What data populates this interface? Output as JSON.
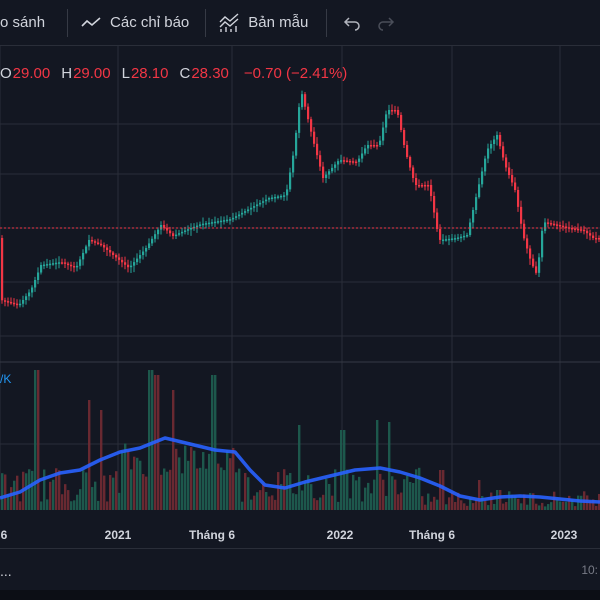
{
  "toolbar": {
    "compare_label": "o sánh",
    "indicators_label": "Các chỉ báo",
    "templates_label": "Bản mẫu"
  },
  "ohlc": {
    "o_label": "O",
    "o_value": "29.00",
    "h_label": "H",
    "h_value": "29.00",
    "l_label": "L",
    "l_value": "28.10",
    "c_label": "C",
    "c_value": "28.30",
    "change": "−0.70 (−2.41%)"
  },
  "volume_label": "/K",
  "x_axis_labels": [
    "6",
    "2021",
    "Tháng 6",
    "2022",
    "Tháng 6",
    "2023"
  ],
  "status": {
    "left": "...",
    "right": "10:"
  },
  "colors": {
    "background": "#131722",
    "up": "#26a69a",
    "down": "#f23645",
    "volume_ma": "#2962ff",
    "grid": "#2a2e39"
  },
  "chart_data": {
    "type": "candlestick",
    "ma_on_volume": true,
    "grid": true,
    "price_line": 28.3
  }
}
